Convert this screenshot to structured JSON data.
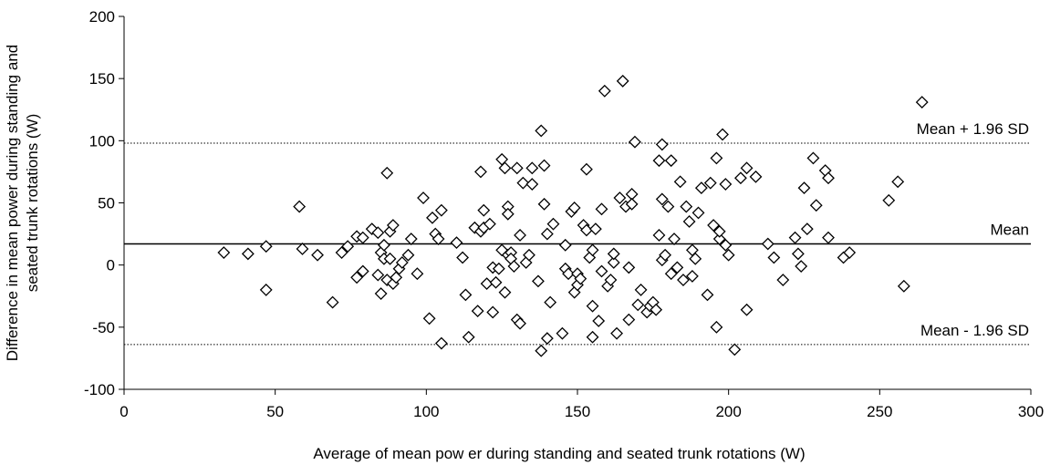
{
  "chart_data": {
    "type": "scatter",
    "title": "",
    "xlabel": "Average of mean pow er during standing and seated trunk rotations (W)",
    "ylabel_lines": [
      "Difference in mean power during standing and",
      "seated trunk rotations (W)"
    ],
    "xlim": [
      0,
      300
    ],
    "ylim": [
      -100,
      200
    ],
    "x_ticks": [
      "0",
      "50",
      "100",
      "150",
      "200",
      "250",
      "300"
    ],
    "y_ticks": [
      "200",
      "150",
      "100",
      "50",
      "0",
      "-50",
      "-100"
    ],
    "grid": false,
    "marker": "diamond",
    "reference_lines": [
      {
        "label": "Mean + 1.96 SD",
        "y": 98,
        "style": "dotted"
      },
      {
        "label": "Mean",
        "y": 17,
        "style": "solid"
      },
      {
        "label": "Mean - 1.96 SD",
        "y": -64,
        "style": "dotted"
      }
    ],
    "points": [
      [
        33,
        10
      ],
      [
        41,
        9
      ],
      [
        47,
        15
      ],
      [
        47,
        -20
      ],
      [
        58,
        47
      ],
      [
        59,
        13
      ],
      [
        64,
        8
      ],
      [
        69,
        -30
      ],
      [
        72,
        10
      ],
      [
        74,
        15
      ],
      [
        77,
        23
      ],
      [
        77,
        -10
      ],
      [
        79,
        -5
      ],
      [
        79,
        22
      ],
      [
        82,
        29
      ],
      [
        84,
        26
      ],
      [
        84,
        -8
      ],
      [
        85,
        -23
      ],
      [
        85,
        10
      ],
      [
        86,
        5
      ],
      [
        86,
        16
      ],
      [
        87,
        74
      ],
      [
        87,
        -12
      ],
      [
        88,
        27
      ],
      [
        88,
        5
      ],
      [
        89,
        32
      ],
      [
        89,
        -15
      ],
      [
        90,
        -10
      ],
      [
        91,
        -3
      ],
      [
        92,
        2
      ],
      [
        94,
        8
      ],
      [
        95,
        21
      ],
      [
        97,
        -7
      ],
      [
        99,
        54
      ],
      [
        101,
        -43
      ],
      [
        102,
        38
      ],
      [
        103,
        25
      ],
      [
        104,
        21
      ],
      [
        105,
        44
      ],
      [
        105,
        -63
      ],
      [
        110,
        18
      ],
      [
        112,
        6
      ],
      [
        113,
        -24
      ],
      [
        114,
        -58
      ],
      [
        116,
        30
      ],
      [
        117,
        -37
      ],
      [
        118,
        75
      ],
      [
        118,
        27
      ],
      [
        119,
        44
      ],
      [
        119,
        30
      ],
      [
        120,
        -15
      ],
      [
        121,
        33
      ],
      [
        122,
        -2
      ],
      [
        122,
        -38
      ],
      [
        123,
        -14
      ],
      [
        124,
        -3
      ],
      [
        125,
        85
      ],
      [
        125,
        12
      ],
      [
        126,
        78
      ],
      [
        126,
        -22
      ],
      [
        127,
        47
      ],
      [
        127,
        41
      ],
      [
        127,
        8
      ],
      [
        128,
        10
      ],
      [
        128,
        5
      ],
      [
        129,
        -1
      ],
      [
        130,
        78
      ],
      [
        130,
        -44
      ],
      [
        131,
        24
      ],
      [
        131,
        -47
      ],
      [
        132,
        66
      ],
      [
        133,
        2
      ],
      [
        134,
        8
      ],
      [
        135,
        78
      ],
      [
        135,
        65
      ],
      [
        137,
        -13
      ],
      [
        138,
        -69
      ],
      [
        138,
        108
      ],
      [
        139,
        80
      ],
      [
        139,
        49
      ],
      [
        140,
        -59
      ],
      [
        140,
        25
      ],
      [
        141,
        -30
      ],
      [
        142,
        33
      ],
      [
        145,
        -55
      ],
      [
        146,
        -3
      ],
      [
        146,
        16
      ],
      [
        147,
        -7
      ],
      [
        148,
        43
      ],
      [
        149,
        46
      ],
      [
        149,
        -22
      ],
      [
        150,
        -16
      ],
      [
        150,
        -7
      ],
      [
        151,
        -11
      ],
      [
        152,
        32
      ],
      [
        153,
        77
      ],
      [
        153,
        28
      ],
      [
        154,
        6
      ],
      [
        155,
        12
      ],
      [
        155,
        -58
      ],
      [
        155,
        -33
      ],
      [
        156,
        29
      ],
      [
        157,
        -45
      ],
      [
        158,
        -5
      ],
      [
        158,
        45
      ],
      [
        159,
        140
      ],
      [
        160,
        -17
      ],
      [
        161,
        -12
      ],
      [
        162,
        2
      ],
      [
        162,
        9
      ],
      [
        163,
        -55
      ],
      [
        164,
        54
      ],
      [
        165,
        148
      ],
      [
        166,
        47
      ],
      [
        167,
        -44
      ],
      [
        167,
        -2
      ],
      [
        168,
        57
      ],
      [
        168,
        49
      ],
      [
        169,
        99
      ],
      [
        170,
        -32
      ],
      [
        171,
        -20
      ],
      [
        173,
        -38
      ],
      [
        174,
        -33
      ],
      [
        175,
        -30
      ],
      [
        176,
        -36
      ],
      [
        177,
        24
      ],
      [
        177,
        84
      ],
      [
        178,
        53
      ],
      [
        178,
        97
      ],
      [
        178,
        4
      ],
      [
        179,
        8
      ],
      [
        180,
        47
      ],
      [
        181,
        84
      ],
      [
        181,
        -7
      ],
      [
        182,
        21
      ],
      [
        183,
        -2
      ],
      [
        184,
        67
      ],
      [
        185,
        -12
      ],
      [
        186,
        47
      ],
      [
        187,
        35
      ],
      [
        188,
        12
      ],
      [
        188,
        -9
      ],
      [
        189,
        5
      ],
      [
        190,
        42
      ],
      [
        191,
        62
      ],
      [
        193,
        -24
      ],
      [
        194,
        66
      ],
      [
        195,
        32
      ],
      [
        196,
        86
      ],
      [
        196,
        -50
      ],
      [
        197,
        21
      ],
      [
        197,
        27
      ],
      [
        198,
        105
      ],
      [
        199,
        65
      ],
      [
        199,
        16
      ],
      [
        200,
        8
      ],
      [
        202,
        -68
      ],
      [
        204,
        70
      ],
      [
        206,
        78
      ],
      [
        206,
        -36
      ],
      [
        209,
        71
      ],
      [
        213,
        17
      ],
      [
        215,
        6
      ],
      [
        218,
        -12
      ],
      [
        222,
        22
      ],
      [
        223,
        9
      ],
      [
        224,
        -1
      ],
      [
        225,
        62
      ],
      [
        226,
        29
      ],
      [
        228,
        86
      ],
      [
        229,
        48
      ],
      [
        232,
        76
      ],
      [
        233,
        70
      ],
      [
        233,
        22
      ],
      [
        238,
        6
      ],
      [
        240,
        10
      ],
      [
        253,
        52
      ],
      [
        256,
        67
      ],
      [
        258,
        -17
      ],
      [
        264,
        131
      ]
    ]
  }
}
